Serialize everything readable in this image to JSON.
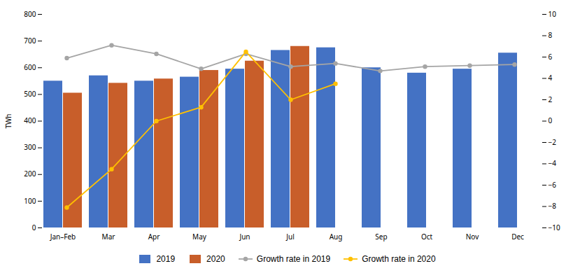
{
  "chart_data": {
    "type": "bar",
    "categories": [
      "Jan–Feb",
      "Mar",
      "Apr",
      "May",
      "Jun",
      "Jul",
      "Aug",
      "Sep",
      "Oct",
      "Nov",
      "Dec"
    ],
    "series": [
      {
        "name": "2019",
        "type": "bar",
        "color": "#4472C4",
        "values": [
          550,
          570,
          550,
          565,
          595,
          665,
          675,
          600,
          580,
          595,
          655
        ]
      },
      {
        "name": "2020",
        "type": "bar",
        "color": "#C85E2A",
        "values": [
          505,
          542,
          558,
          590,
          625,
          680,
          null,
          null,
          null,
          null,
          null
        ]
      },
      {
        "name": "Growth rate in 2019",
        "type": "line",
        "axis": "y2",
        "color": "#A5A5A5",
        "marker": "circle",
        "values": [
          5.9,
          7.1,
          6.3,
          4.9,
          6.3,
          5.1,
          5.4,
          4.7,
          5.1,
          5.2,
          5.3
        ]
      },
      {
        "name": "Growth rate in 2020",
        "type": "line",
        "axis": "y2",
        "color": "#FFC000",
        "marker": "circle",
        "values": [
          -8.1,
          -4.5,
          0.0,
          1.3,
          6.5,
          2.0,
          3.5,
          null,
          null,
          null,
          null
        ]
      }
    ],
    "ylabel": "TWh",
    "ylim": [
      0,
      800
    ],
    "yticks": [
      0,
      100,
      200,
      300,
      400,
      500,
      600,
      700,
      800
    ],
    "y2lim": [
      -10,
      10
    ],
    "y2ticks": [
      -10,
      -8,
      -6,
      -4,
      -2,
      0,
      2,
      4,
      6,
      8,
      10
    ],
    "grid": false,
    "legend": "bottom"
  }
}
